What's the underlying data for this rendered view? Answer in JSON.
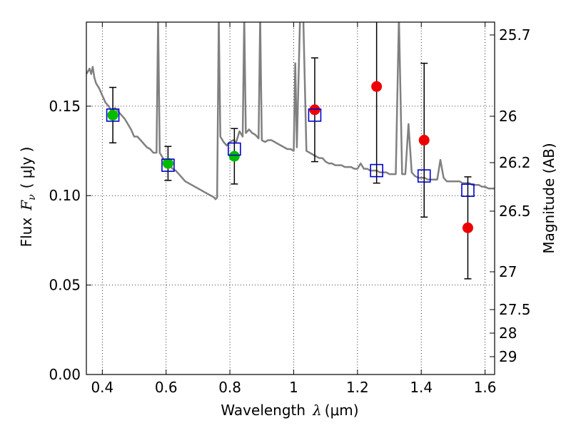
{
  "chart_data": {
    "type": "scatter",
    "xlabel": {
      "prefix": "Wavelength",
      "symbol": "λ",
      "unit": "(μm)"
    },
    "ylabel": {
      "prefix": "Flux",
      "symbol": "F",
      "subscript": "ν",
      "unit": "( μJy )"
    },
    "y2label": "Magnitude (AB)",
    "xlim": [
      0.35,
      1.63
    ],
    "ylim": [
      0.0,
      0.197
    ],
    "grid": true,
    "xticks": [
      {
        "value": 0.4,
        "label": "0.4"
      },
      {
        "value": 0.6,
        "label": "0.6"
      },
      {
        "value": 0.8,
        "label": "0.8"
      },
      {
        "value": 1.0,
        "label": "1"
      },
      {
        "value": 1.2,
        "label": "1.2"
      },
      {
        "value": 1.4,
        "label": "1.4"
      },
      {
        "value": 1.6,
        "label": "1.6"
      }
    ],
    "yticks": [
      {
        "value": 0.0,
        "label": "0.00"
      },
      {
        "value": 0.05,
        "label": "0.05"
      },
      {
        "value": 0.1,
        "label": "0.10"
      },
      {
        "value": 0.15,
        "label": "0.15"
      }
    ],
    "y2ticks": [
      "25.7",
      "26",
      "26.2",
      "26.5",
      "27",
      "27.5",
      "28",
      "29"
    ],
    "series": [
      {
        "kind": "spectrum",
        "color": "#808080",
        "points": [
          [
            0.35,
            0.168
          ],
          [
            0.36,
            0.171
          ],
          [
            0.365,
            0.168
          ],
          [
            0.37,
            0.172
          ],
          [
            0.375,
            0.166
          ],
          [
            0.38,
            0.163
          ],
          [
            0.39,
            0.16
          ],
          [
            0.4,
            0.156
          ],
          [
            0.41,
            0.152
          ],
          [
            0.42,
            0.15
          ],
          [
            0.43,
            0.147
          ],
          [
            0.44,
            0.149
          ],
          [
            0.45,
            0.147
          ],
          [
            0.46,
            0.145
          ],
          [
            0.47,
            0.143
          ],
          [
            0.48,
            0.14
          ],
          [
            0.49,
            0.137
          ],
          [
            0.5,
            0.133
          ],
          [
            0.51,
            0.133
          ],
          [
            0.52,
            0.131
          ],
          [
            0.53,
            0.129
          ],
          [
            0.54,
            0.127
          ],
          [
            0.55,
            0.126
          ],
          [
            0.56,
            0.124
          ],
          [
            0.57,
            0.124
          ],
          [
            0.575,
            0.2
          ],
          [
            0.58,
            0.124
          ],
          [
            0.59,
            0.121
          ],
          [
            0.6,
            0.118
          ],
          [
            0.61,
            0.117
          ],
          [
            0.62,
            0.115
          ],
          [
            0.63,
            0.114
          ],
          [
            0.64,
            0.112
          ],
          [
            0.65,
            0.11
          ],
          [
            0.66,
            0.108
          ],
          [
            0.67,
            0.107
          ],
          [
            0.68,
            0.106
          ],
          [
            0.69,
            0.105
          ],
          [
            0.7,
            0.104
          ],
          [
            0.71,
            0.103
          ],
          [
            0.72,
            0.102
          ],
          [
            0.73,
            0.101
          ],
          [
            0.74,
            0.1
          ],
          [
            0.75,
            0.099
          ],
          [
            0.755,
            0.098
          ],
          [
            0.76,
            0.099
          ],
          [
            0.765,
            0.2
          ],
          [
            0.77,
            0.133
          ],
          [
            0.78,
            0.13
          ],
          [
            0.79,
            0.128
          ],
          [
            0.8,
            0.13
          ],
          [
            0.81,
            0.131
          ],
          [
            0.82,
            0.13
          ],
          [
            0.83,
            0.136
          ],
          [
            0.84,
            0.133
          ],
          [
            0.845,
            0.2
          ],
          [
            0.85,
            0.135
          ],
          [
            0.86,
            0.137
          ],
          [
            0.87,
            0.135
          ],
          [
            0.88,
            0.134
          ],
          [
            0.89,
            0.132
          ],
          [
            0.895,
            0.2
          ],
          [
            0.9,
            0.131
          ],
          [
            0.91,
            0.13
          ],
          [
            0.92,
            0.131
          ],
          [
            0.93,
            0.131
          ],
          [
            0.94,
            0.13
          ],
          [
            0.95,
            0.129
          ],
          [
            0.96,
            0.128
          ],
          [
            0.97,
            0.127
          ],
          [
            0.98,
            0.126
          ],
          [
            0.99,
            0.126
          ],
          [
            1.0,
            0.125
          ],
          [
            1.005,
            0.174
          ],
          [
            1.01,
            0.127
          ],
          [
            1.02,
            0.2
          ],
          [
            1.03,
            0.2
          ],
          [
            1.04,
            0.125
          ],
          [
            1.05,
            0.124
          ],
          [
            1.06,
            0.123
          ],
          [
            1.07,
            0.122
          ],
          [
            1.08,
            0.121
          ],
          [
            1.09,
            0.121
          ],
          [
            1.1,
            0.119
          ],
          [
            1.11,
            0.118
          ],
          [
            1.12,
            0.118
          ],
          [
            1.13,
            0.117
          ],
          [
            1.14,
            0.117
          ],
          [
            1.15,
            0.117
          ],
          [
            1.16,
            0.116
          ],
          [
            1.17,
            0.116
          ],
          [
            1.18,
            0.116
          ],
          [
            1.19,
            0.115
          ],
          [
            1.2,
            0.115
          ],
          [
            1.21,
            0.118
          ],
          [
            1.22,
            0.115
          ],
          [
            1.23,
            0.115
          ],
          [
            1.24,
            0.114
          ],
          [
            1.25,
            0.114
          ],
          [
            1.26,
            0.114
          ],
          [
            1.27,
            0.113
          ],
          [
            1.28,
            0.113
          ],
          [
            1.29,
            0.113
          ],
          [
            1.3,
            0.112
          ],
          [
            1.31,
            0.112
          ],
          [
            1.32,
            0.112
          ],
          [
            1.33,
            0.2
          ],
          [
            1.34,
            0.112
          ],
          [
            1.35,
            0.112
          ],
          [
            1.36,
            0.14
          ],
          [
            1.37,
            0.113
          ],
          [
            1.38,
            0.111
          ],
          [
            1.39,
            0.11
          ],
          [
            1.4,
            0.11
          ],
          [
            1.41,
            0.11
          ],
          [
            1.42,
            0.109
          ],
          [
            1.43,
            0.109
          ],
          [
            1.44,
            0.109
          ],
          [
            1.45,
            0.109
          ],
          [
            1.46,
            0.12
          ],
          [
            1.47,
            0.11
          ],
          [
            1.48,
            0.108
          ],
          [
            1.49,
            0.108
          ],
          [
            1.5,
            0.108
          ],
          [
            1.51,
            0.108
          ],
          [
            1.52,
            0.108
          ],
          [
            1.53,
            0.107
          ],
          [
            1.54,
            0.107
          ],
          [
            1.55,
            0.107
          ],
          [
            1.56,
            0.106
          ],
          [
            1.57,
            0.106
          ],
          [
            1.58,
            0.106
          ],
          [
            1.59,
            0.105
          ],
          [
            1.6,
            0.105
          ],
          [
            1.61,
            0.104
          ],
          [
            1.62,
            0.104
          ],
          [
            1.63,
            0.104
          ]
        ]
      },
      {
        "kind": "observed",
        "marker": "circle",
        "color": "#00bb00",
        "points": [
          {
            "x": 0.433,
            "y": 0.145,
            "err": 0.0155
          },
          {
            "x": 0.606,
            "y": 0.118,
            "err": 0.0095
          },
          {
            "x": 0.814,
            "y": 0.122,
            "err": 0.0155
          }
        ]
      },
      {
        "kind": "observed",
        "marker": "circle",
        "color": "#ee0000",
        "points": [
          {
            "x": 1.066,
            "y": 0.148,
            "err": 0.029
          },
          {
            "x": 1.26,
            "y": 0.161,
            "err": 0.054
          },
          {
            "x": 1.409,
            "y": 0.131,
            "err": 0.043
          },
          {
            "x": 1.546,
            "y": 0.082,
            "err": 0.0285
          }
        ]
      },
      {
        "kind": "model",
        "marker": "square",
        "color": "#0000cc",
        "points": [
          {
            "x": 0.433,
            "y": 0.145
          },
          {
            "x": 0.606,
            "y": 0.117
          },
          {
            "x": 0.814,
            "y": 0.126
          },
          {
            "x": 1.066,
            "y": 0.145
          },
          {
            "x": 1.26,
            "y": 0.114
          },
          {
            "x": 1.409,
            "y": 0.111
          },
          {
            "x": 1.546,
            "y": 0.103
          }
        ]
      }
    ]
  }
}
